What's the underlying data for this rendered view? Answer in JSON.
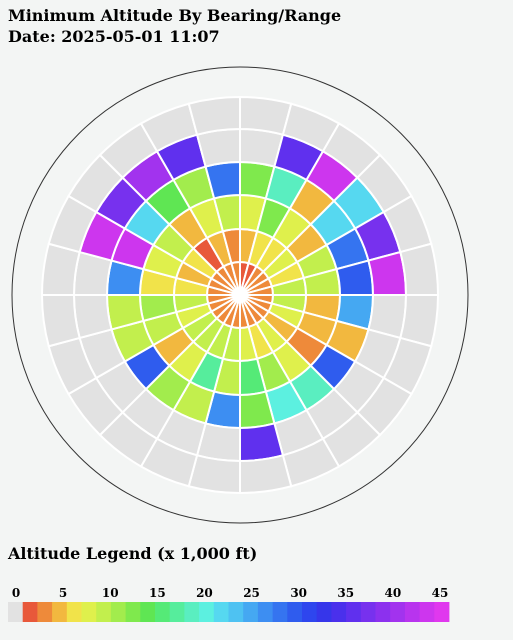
{
  "header": {
    "title": "Minimum Altitude By Bearing/Range",
    "date_line": "Date: 2025-05-01 11:07"
  },
  "legend": {
    "title": "Altitude Legend (x 1,000 ft)",
    "ticks": [
      "0",
      "5",
      "10",
      "15",
      "20",
      "25",
      "30",
      "35",
      "40",
      "45"
    ],
    "no_data_color": "#e2e2e2",
    "colors": [
      "#e2e2e2",
      "#e8583a",
      "#ee8a3a",
      "#f2b83f",
      "#f1e34a",
      "#dff04c",
      "#c2ef4d",
      "#a2ec4d",
      "#7fe94d",
      "#5fe653",
      "#55ea77",
      "#56ed9c",
      "#5aeec0",
      "#5cf0e0",
      "#56d8f0",
      "#4ec2f2",
      "#45a8f2",
      "#3d8ef2",
      "#3574f0",
      "#2f5cee",
      "#2e46ee",
      "#3636ea",
      "#4a30ec",
      "#6030ee",
      "#7731ee",
      "#8c31ee",
      "#a233ee",
      "#b834ee",
      "#cd36ee",
      "#e038ee"
    ]
  },
  "chart_data": {
    "type": "heatmap",
    "subtype": "polar-sector",
    "title": "Minimum Altitude By Bearing/Range",
    "date": "2025-05-01 11:07",
    "bearing_sectors": 24,
    "sector_width_deg": 15,
    "range_rings": 6,
    "value_units": "x 1,000 ft",
    "note": "values[ring][sector]; ring 0 is innermost; sector 0 spans bearing 0-15 deg clockwise from north; null = no data",
    "values": [
      [
        2,
        2,
        3,
        3,
        3,
        3,
        3,
        3,
        3,
        3,
        3,
        3,
        3,
        3,
        3,
        3,
        3,
        3,
        3,
        3,
        3,
        3,
        3,
        3
      ],
      [
        5,
        6,
        6,
        7,
        6,
        9,
        10,
        7,
        4,
        8,
        6,
        8,
        10,
        9,
        10,
        10,
        7,
        9,
        6,
        5,
        6,
        1,
        4,
        3
      ],
      [
        8,
        13,
        7,
        5,
        10,
        9,
        5,
        4,
        3,
        8,
        11,
        15,
        9,
        17,
        7,
        4,
        10,
        11,
        6,
        7,
        10,
        5,
        7,
        10
      ],
      [
        12,
        19,
        4,
        21,
        28,
        30,
        25,
        4,
        30,
        18,
        20,
        12,
        27,
        10,
        11,
        29,
        9,
        10,
        27,
        43,
        21,
        14,
        11,
        28
      ],
      [
        null,
        36,
        44,
        22,
        38,
        43,
        null,
        null,
        null,
        null,
        null,
        36,
        null,
        null,
        null,
        null,
        null,
        null,
        null,
        43,
        38,
        41,
        36,
        null
      ],
      [
        null,
        null,
        null,
        null,
        null,
        null,
        null,
        null,
        null,
        null,
        null,
        null,
        null,
        null,
        null,
        null,
        null,
        null,
        null,
        null,
        null,
        null,
        null,
        null
      ]
    ]
  }
}
